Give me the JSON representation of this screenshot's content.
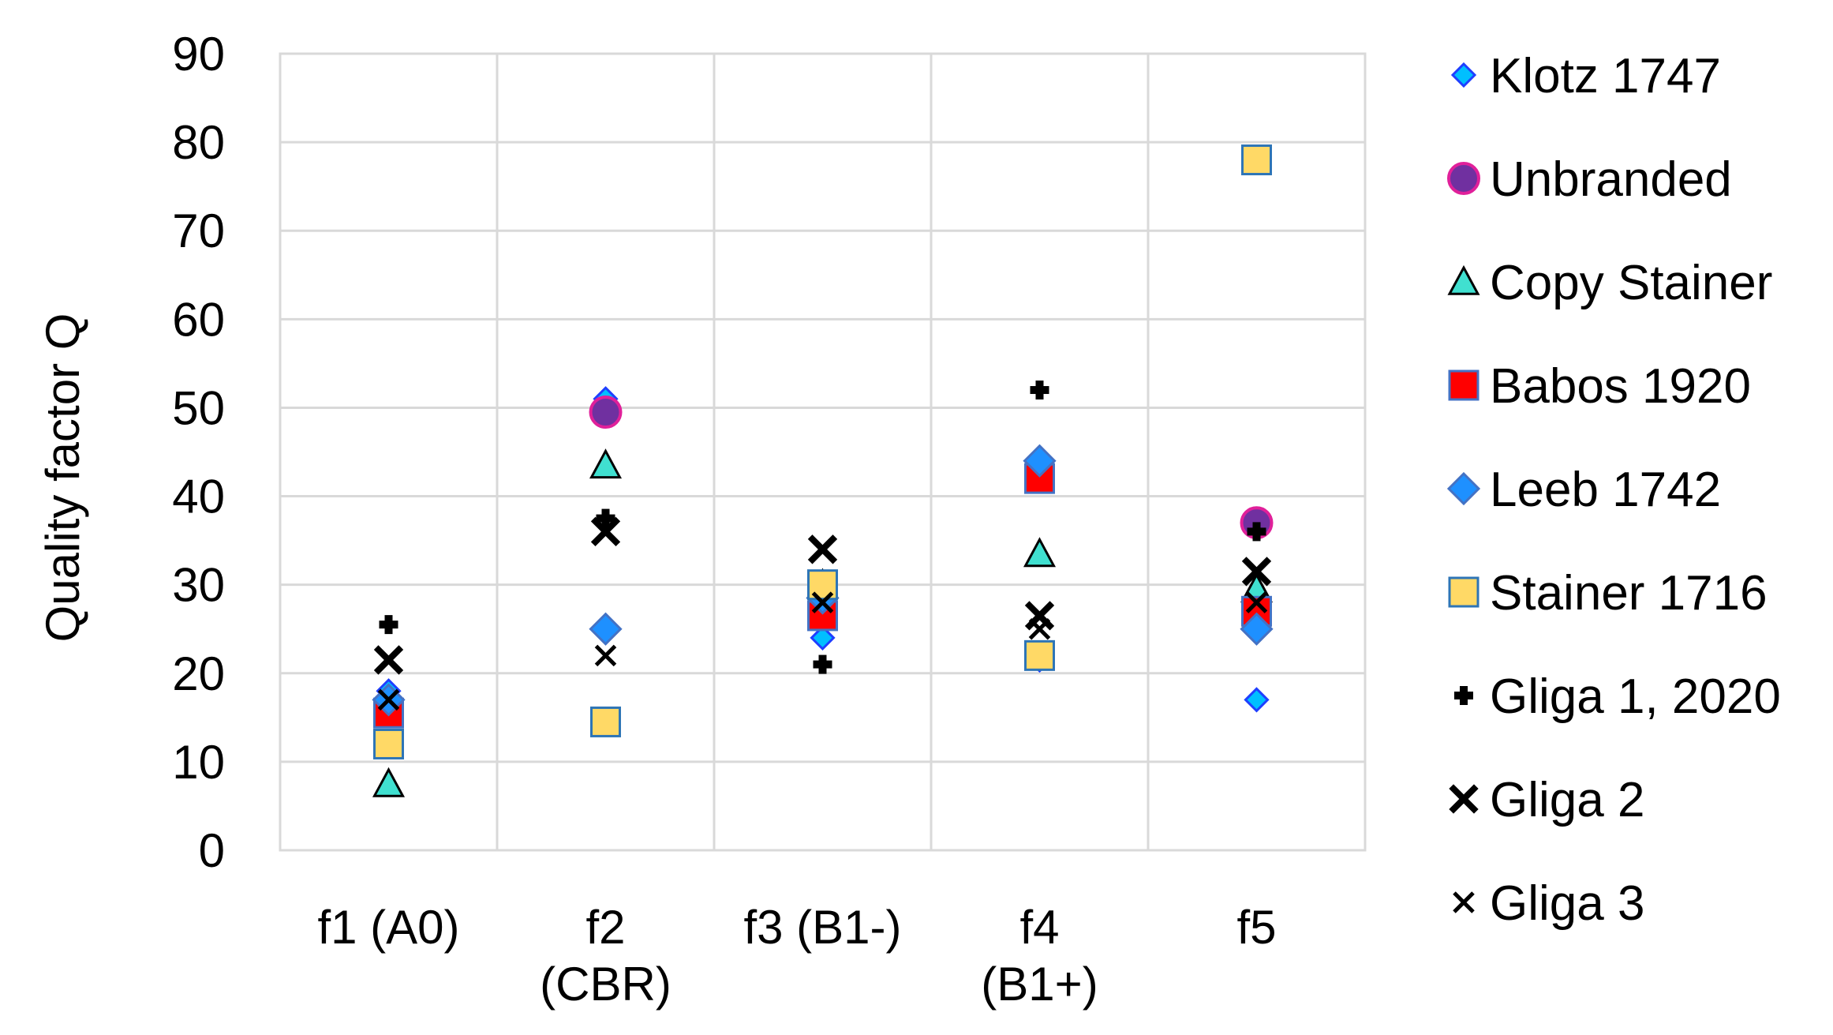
{
  "chart_data": {
    "type": "scatter",
    "title": "",
    "xlabel": "",
    "ylabel": "Quality factor Q",
    "ylim": [
      0,
      90
    ],
    "yticks": [
      0,
      10,
      20,
      30,
      40,
      50,
      60,
      70,
      80,
      90
    ],
    "grid": true,
    "legend_position": "right",
    "categories": [
      [
        "f1 (A0)"
      ],
      [
        "f2",
        "(CBR)"
      ],
      [
        "f3 (B1-)"
      ],
      [
        "f4",
        "(B1+)"
      ],
      [
        "f5"
      ]
    ],
    "series": [
      {
        "name": "Klotz 1747",
        "marker": "diamond-small",
        "fill": "#00BFFF",
        "stroke": "#1F3FFF",
        "values": [
          18,
          51,
          24,
          21.5,
          17
        ]
      },
      {
        "name": "Unbranded",
        "marker": "circle",
        "fill": "#7030A0",
        "stroke": "#E0209A",
        "values": [
          null,
          49.5,
          null,
          null,
          37
        ]
      },
      {
        "name": "Copy Stainer",
        "marker": "triangle",
        "fill": "#40E0D0",
        "stroke": "#000000",
        "values": [
          7.5,
          43.5,
          30,
          33.5,
          29.5
        ]
      },
      {
        "name": "Babos 1920",
        "marker": "square",
        "fill": "#FF0000",
        "stroke": "#4472C4",
        "values": [
          15.5,
          null,
          26.5,
          42,
          27
        ]
      },
      {
        "name": "Leeb 1742",
        "marker": "diamond",
        "fill": "#1E90FF",
        "stroke": "#4472C4",
        "values": [
          17,
          25,
          28.5,
          44,
          25
        ]
      },
      {
        "name": "Stainer 1716",
        "marker": "square",
        "fill": "#FFD966",
        "stroke": "#2E75B6",
        "values": [
          12,
          14.5,
          30,
          22,
          78
        ]
      },
      {
        "name": "Gliga 1, 2020",
        "marker": "plus",
        "fill": "#000000",
        "stroke": "#000000",
        "values": [
          25.5,
          37.5,
          21,
          52,
          36
        ]
      },
      {
        "name": "Gliga 2",
        "marker": "x-bold",
        "fill": "#000000",
        "stroke": "#000000",
        "values": [
          21.5,
          36,
          34,
          26.5,
          31.5
        ]
      },
      {
        "name": "Gliga 3",
        "marker": "x",
        "fill": "#000000",
        "stroke": "#000000",
        "values": [
          17,
          22,
          28,
          25,
          28
        ]
      }
    ]
  }
}
